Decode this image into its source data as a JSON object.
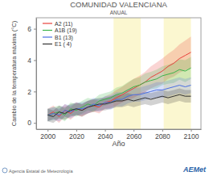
{
  "chart_data": {
    "type": "line",
    "title": "COMUNIDAD VALENCIANA",
    "subtitle": "ANUAL",
    "x_label": "Año",
    "y_label": "Cambio de la temperatura máxima (°C)",
    "source": "Agencia Estatal de Meteorología",
    "logo": "AEMet",
    "legend": "top-left",
    "xlim": [
      1992,
      2107
    ],
    "xticks": [
      2000,
      2020,
      2040,
      2060,
      2080,
      2100
    ],
    "ylim": [
      -0.4,
      6.7
    ],
    "yticks": [
      0,
      2,
      4,
      6
    ],
    "shaded_periods": [
      [
        2046,
        2065
      ],
      [
        2081,
        2100
      ]
    ],
    "x": [
      2000,
      2004,
      2008,
      2012,
      2016,
      2020,
      2024,
      2028,
      2032,
      2036,
      2040,
      2044,
      2048,
      2052,
      2056,
      2060,
      2064,
      2068,
      2072,
      2076,
      2080,
      2084,
      2088,
      2092,
      2096,
      2100
    ],
    "series": [
      {
        "name": "A2 (11)",
        "color": "#e8413c",
        "values": [
          0.5,
          0.7,
          0.4,
          0.8,
          0.6,
          0.9,
          0.8,
          1.0,
          1.1,
          1.0,
          1.3,
          1.4,
          1.6,
          1.8,
          2.0,
          2.2,
          2.4,
          2.6,
          2.9,
          3.1,
          3.3,
          3.6,
          3.8,
          4.1,
          4.3,
          4.5
        ],
        "lower": [
          0.1,
          0.3,
          0.0,
          0.4,
          0.2,
          0.5,
          0.4,
          0.6,
          0.7,
          0.6,
          0.9,
          0.95,
          1.1,
          1.3,
          1.45,
          1.6,
          1.8,
          1.95,
          2.2,
          2.35,
          2.5,
          2.8,
          2.95,
          3.2,
          3.35,
          3.5
        ],
        "upper": [
          0.9,
          1.1,
          0.8,
          1.2,
          1.0,
          1.3,
          1.2,
          1.4,
          1.5,
          1.4,
          1.7,
          1.85,
          2.1,
          2.3,
          2.55,
          2.8,
          3.0,
          3.25,
          3.6,
          3.85,
          4.1,
          4.4,
          4.65,
          5.0,
          5.25,
          5.5
        ]
      },
      {
        "name": "A1B (19)",
        "color": "#3cb44b",
        "values": [
          0.5,
          0.6,
          0.7,
          0.5,
          0.9,
          0.8,
          1.0,
          1.2,
          1.1,
          1.4,
          1.5,
          1.6,
          1.8,
          1.9,
          2.1,
          2.3,
          2.4,
          2.6,
          2.7,
          2.8,
          3.0,
          3.1,
          3.2,
          3.4,
          3.3,
          3.5
        ],
        "lower": [
          0.1,
          0.2,
          0.3,
          0.1,
          0.5,
          0.4,
          0.6,
          0.8,
          0.7,
          1.0,
          1.1,
          1.2,
          1.35,
          1.45,
          1.6,
          1.8,
          1.9,
          2.05,
          2.15,
          2.2,
          2.4,
          2.5,
          2.55,
          2.75,
          2.6,
          2.8
        ],
        "upper": [
          0.9,
          1.0,
          1.1,
          0.9,
          1.3,
          1.2,
          1.4,
          1.6,
          1.5,
          1.8,
          1.9,
          2.0,
          2.25,
          2.35,
          2.6,
          2.8,
          2.9,
          3.15,
          3.25,
          3.4,
          3.6,
          3.7,
          3.85,
          4.05,
          4.0,
          4.2
        ]
      },
      {
        "name": "B1 (13)",
        "color": "#4a6fe3",
        "values": [
          0.5,
          0.6,
          0.5,
          0.8,
          0.7,
          0.9,
          0.9,
          1.0,
          1.2,
          1.1,
          1.3,
          1.3,
          1.5,
          1.5,
          1.7,
          1.8,
          1.8,
          1.9,
          2.0,
          2.1,
          2.1,
          2.2,
          2.3,
          2.4,
          2.3,
          2.4
        ],
        "lower": [
          0.1,
          0.2,
          0.1,
          0.4,
          0.3,
          0.5,
          0.5,
          0.6,
          0.8,
          0.7,
          0.9,
          0.85,
          1.05,
          1.05,
          1.25,
          1.35,
          1.35,
          1.45,
          1.55,
          1.6,
          1.6,
          1.7,
          1.8,
          1.9,
          1.8,
          1.9
        ],
        "upper": [
          0.9,
          1.0,
          0.9,
          1.2,
          1.1,
          1.3,
          1.3,
          1.4,
          1.6,
          1.5,
          1.7,
          1.75,
          1.95,
          1.95,
          2.15,
          2.25,
          2.25,
          2.35,
          2.45,
          2.6,
          2.6,
          2.7,
          2.8,
          2.9,
          2.8,
          2.9
        ]
      },
      {
        "name": "E1 ( 4)",
        "color": "#333333",
        "values": [
          0.5,
          0.4,
          0.7,
          0.6,
          0.8,
          0.9,
          0.8,
          1.0,
          1.1,
          1.2,
          1.2,
          1.3,
          1.4,
          1.4,
          1.5,
          1.4,
          1.5,
          1.6,
          1.5,
          1.6,
          1.7,
          1.6,
          1.7,
          1.8,
          1.7,
          1.7
        ],
        "lower": [
          0.1,
          0.0,
          0.3,
          0.2,
          0.4,
          0.5,
          0.4,
          0.6,
          0.7,
          0.8,
          0.8,
          0.9,
          1.0,
          1.0,
          1.1,
          1.0,
          1.1,
          1.2,
          1.1,
          1.2,
          1.3,
          1.2,
          1.3,
          1.4,
          1.3,
          1.3
        ],
        "upper": [
          0.9,
          0.8,
          1.1,
          1.0,
          1.2,
          1.3,
          1.2,
          1.4,
          1.5,
          1.6,
          1.6,
          1.7,
          1.8,
          1.8,
          1.9,
          1.8,
          1.9,
          2.0,
          1.9,
          2.0,
          2.1,
          2.0,
          2.1,
          2.2,
          2.1,
          2.1
        ]
      }
    ]
  }
}
